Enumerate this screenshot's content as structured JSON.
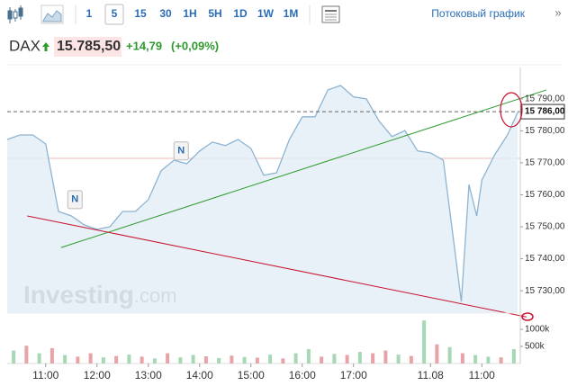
{
  "toolbar": {
    "intervals": [
      "1",
      "5",
      "15",
      "30",
      "1H",
      "5H",
      "1D",
      "1W",
      "1M"
    ],
    "selected_index": 1,
    "stream_link": "Потоковый график",
    "more": "»"
  },
  "header": {
    "symbol": "DAX",
    "price": "15.785,50",
    "change": "+14,79",
    "change_pct": "(+0,09%)"
  },
  "chart_data": {
    "type": "line",
    "x": [
      0.25,
      0.5,
      0.75,
      1.0,
      1.25,
      1.5,
      1.75,
      2.0,
      2.25,
      2.5,
      2.75,
      3.0,
      3.25,
      3.5,
      3.75,
      4.0,
      4.25,
      4.5,
      4.75,
      5.0,
      5.25,
      5.5,
      5.75,
      6.0,
      6.25,
      6.5,
      6.75,
      7.0,
      7.25,
      7.5,
      7.75,
      8.0,
      8.25,
      8.5,
      8.75,
      9.0,
      9.1,
      9.25,
      9.4,
      9.5,
      9.75,
      10.0,
      10.2
    ],
    "values": [
      15777.3,
      15778.7,
      15778.7,
      15775.9,
      15754.8,
      15753.4,
      15750.6,
      15749.2,
      15750.0,
      15754.8,
      15754.8,
      15758.5,
      15767.5,
      15770.8,
      15769.7,
      15773.7,
      15776.5,
      15775.4,
      15777.3,
      15774.5,
      15766.1,
      15766.9,
      15777.3,
      15784.4,
      15784.4,
      15792.8,
      15794.2,
      15790.6,
      15790.0,
      15783.0,
      15778.2,
      15780.1,
      15773.7,
      15773.1,
      15770.8,
      15739.3,
      15726.6,
      15763.2,
      15753.4,
      15764.6,
      15772.5,
      15778.7,
      15785.8
    ],
    "color": "#8db4d3",
    "fill": "#e4eef6",
    "xlim": [
      0.25,
      10.25
    ],
    "ylim": [
      15723,
      15797
    ],
    "xticks": [
      {
        "value": 1,
        "label": "11:00"
      },
      {
        "value": 2,
        "label": "12:00"
      },
      {
        "value": 3,
        "label": "13:00"
      },
      {
        "value": 4,
        "label": "14:00"
      },
      {
        "value": 5,
        "label": "15:00"
      },
      {
        "value": 6,
        "label": "16:00"
      },
      {
        "value": 7,
        "label": "17:00"
      },
      {
        "value": 8.5,
        "label": "11.08"
      },
      {
        "value": 9.5,
        "label": "11:00"
      }
    ],
    "yticks": [
      {
        "value": 15730,
        "label": "15 730,00"
      },
      {
        "value": 15740,
        "label": "15 740,00"
      },
      {
        "value": 15750,
        "label": "15 750,00"
      },
      {
        "value": 15760,
        "label": "15 760,00"
      },
      {
        "value": 15770,
        "label": "15 770,00"
      },
      {
        "value": 15780,
        "label": "15 780,00"
      },
      {
        "value": 15790,
        "label": "15 790,00"
      }
    ],
    "last_value": {
      "value": 15786,
      "label": "15 786,00"
    },
    "reference_line": 15771.4,
    "trendlines": [
      {
        "x": [
          1.3,
          10.76
        ],
        "values": [
          15743.5,
          15792.8
        ],
        "color": "#2e9a2e"
      },
      {
        "x": [
          0.64,
          10.37
        ],
        "values": [
          15753.4,
          15721.8
        ],
        "color": "#c8102e"
      }
    ],
    "news_markers": [
      {
        "x": 1.57,
        "y": 15758.5,
        "label": "N"
      },
      {
        "x": 3.64,
        "y": 15773.7,
        "label": "N"
      }
    ],
    "watermark": [
      "Investing",
      ".com"
    ],
    "volume": {
      "type": "bar",
      "x": [
        0.375,
        0.625,
        0.875,
        1.125,
        1.375,
        1.625,
        1.875,
        2.125,
        2.375,
        2.625,
        2.875,
        3.125,
        3.375,
        3.625,
        3.875,
        4.125,
        4.375,
        4.625,
        4.875,
        5.125,
        5.375,
        5.625,
        5.875,
        6.125,
        6.375,
        6.625,
        6.875,
        7.125,
        7.375,
        7.625,
        7.875,
        8.125,
        8.375,
        8.625,
        8.875,
        9.125,
        9.375,
        9.625,
        9.875,
        10.125
      ],
      "values": [
        380000,
        520000,
        300000,
        450000,
        250000,
        200000,
        300000,
        180000,
        220000,
        260000,
        200000,
        150000,
        300000,
        180000,
        250000,
        210000,
        160000,
        230000,
        190000,
        170000,
        260000,
        150000,
        300000,
        420000,
        200000,
        280000,
        250000,
        340000,
        300000,
        380000,
        260000,
        220000,
        1260000,
        560000,
        480000,
        300000,
        250000,
        200000,
        180000,
        420000
      ],
      "up": [
        true,
        false,
        true,
        false,
        true,
        false,
        false,
        true,
        false,
        true,
        false,
        true,
        false,
        true,
        true,
        false,
        true,
        false,
        true,
        false,
        true,
        false,
        true,
        true,
        false,
        true,
        false,
        true,
        false,
        false,
        true,
        false,
        true,
        false,
        true,
        false,
        true,
        true,
        false,
        true
      ],
      "up_color": "#a6d8b6",
      "down_color": "#e6a3a8",
      "ylim": [
        0,
        1370000
      ],
      "yticks": [
        {
          "value": 500000,
          "label": "500k"
        },
        {
          "value": 1000000,
          "label": "1000k"
        }
      ]
    }
  }
}
